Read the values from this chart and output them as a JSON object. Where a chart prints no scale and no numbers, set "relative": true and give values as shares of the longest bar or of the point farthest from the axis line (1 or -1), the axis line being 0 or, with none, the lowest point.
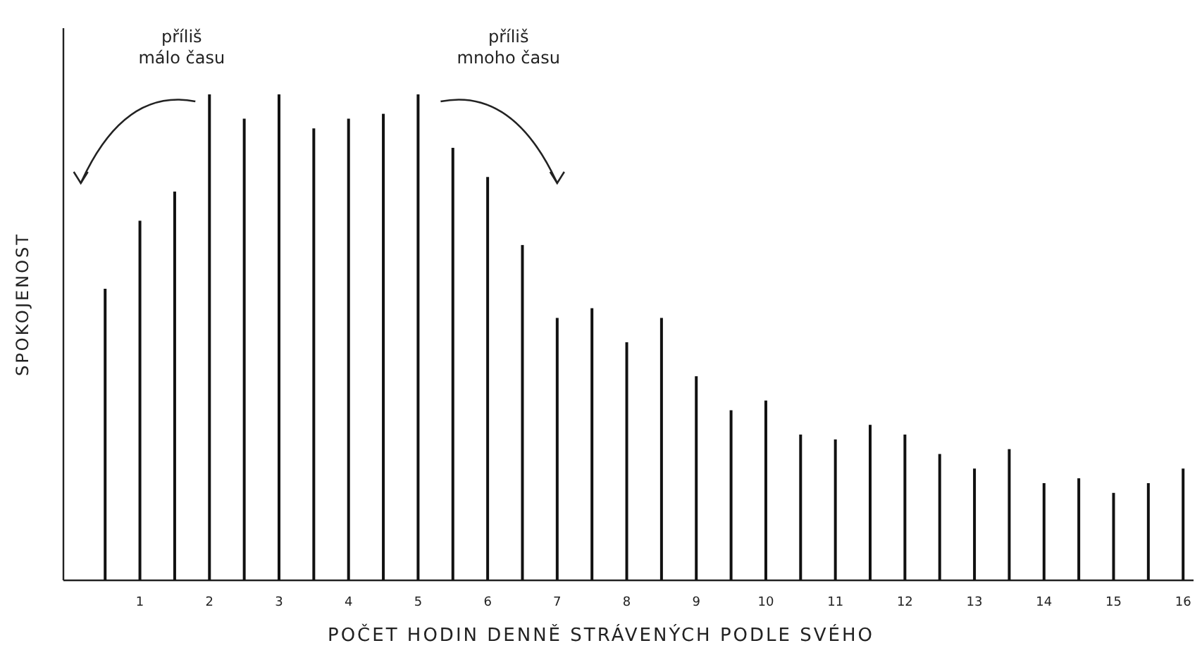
{
  "chart_data": {
    "type": "bar",
    "relative": true,
    "xlabel": "POČET HODIN DENNĚ STRÁVENÝCH PODLE SVÉHO",
    "ylabel": "SPOKOJENOST",
    "annotations": [
      "příliš\nmálo času",
      "příliš\nmnoho času"
    ],
    "x": [
      0.5,
      1,
      1.5,
      2,
      2.5,
      3,
      3.5,
      4,
      4.5,
      5,
      5.5,
      6,
      6.5,
      7,
      7.5,
      8,
      8.5,
      9,
      9.5,
      10,
      10.5,
      11,
      11.5,
      12,
      12.5,
      13,
      13.5,
      14,
      14.5,
      15,
      15.5,
      16
    ],
    "xlim": [
      -0.1,
      16.15
    ],
    "xticks": [
      1,
      2,
      3,
      4,
      5,
      6,
      7,
      8,
      9,
      10,
      11,
      12,
      13,
      14,
      15,
      16
    ],
    "values": [
      0.6,
      0.74,
      0.8,
      1.0,
      0.95,
      1.0,
      0.93,
      0.95,
      0.96,
      1.0,
      0.89,
      0.83,
      0.69,
      0.54,
      0.56,
      0.49,
      0.54,
      0.42,
      0.35,
      0.37,
      0.3,
      0.29,
      0.32,
      0.3,
      0.26,
      0.23,
      0.27,
      0.2,
      0.21,
      0.18,
      0.2,
      0.23
    ],
    "color": "#111111"
  }
}
